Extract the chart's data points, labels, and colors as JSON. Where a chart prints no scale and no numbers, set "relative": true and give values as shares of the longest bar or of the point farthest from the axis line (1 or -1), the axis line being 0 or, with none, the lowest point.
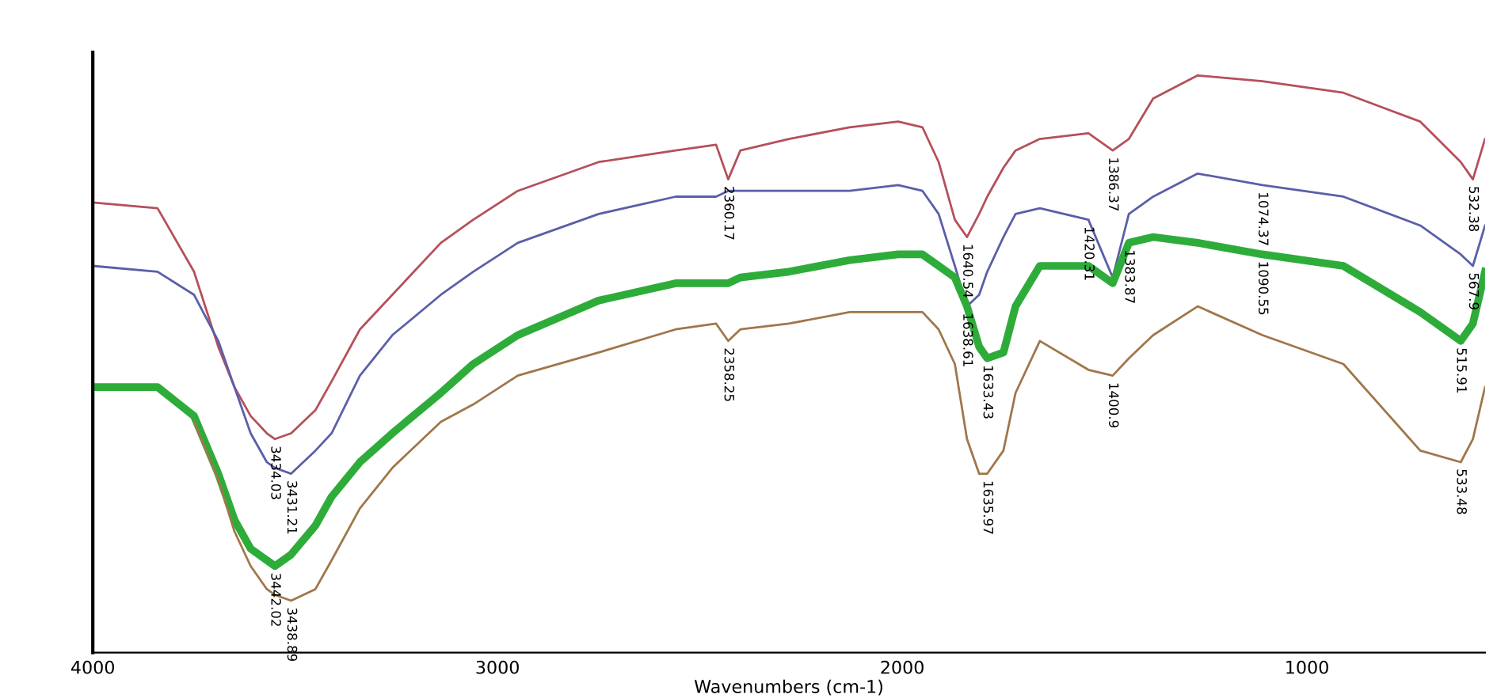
{
  "chart_data": {
    "type": "line",
    "relative": true,
    "xlabel": "Wavenumbers (cm-1)",
    "xlim": [
      4000,
      560
    ],
    "xticks": [
      4000,
      3000,
      2000,
      1000
    ],
    "tick_labels": "x",
    "grid": false,
    "marker": "none",
    "line_style": "solid",
    "x": [
      4000,
      3840,
      3750,
      3690,
      3650,
      3610,
      3570,
      3550,
      3510,
      3450,
      3410,
      3340,
      3260,
      3140,
      3060,
      2950,
      2750,
      2560,
      2460,
      2430,
      2400,
      2280,
      2130,
      2010,
      1950,
      1910,
      1870,
      1840,
      1810,
      1790,
      1750,
      1720,
      1660,
      1540,
      1480,
      1440,
      1380,
      1270,
      1110,
      910,
      720,
      620,
      590,
      560
    ],
    "series": [
      {
        "color": "#b5505a",
        "values": [
          0.78,
          0.77,
          0.66,
          0.53,
          0.46,
          0.41,
          0.38,
          0.37,
          0.38,
          0.42,
          0.47,
          0.56,
          0.62,
          0.71,
          0.75,
          0.8,
          0.85,
          0.87,
          0.88,
          0.82,
          0.87,
          0.89,
          0.91,
          0.92,
          0.91,
          0.85,
          0.75,
          0.72,
          0.76,
          0.79,
          0.84,
          0.87,
          0.89,
          0.9,
          0.87,
          0.89,
          0.96,
          1.0,
          0.99,
          0.97,
          0.92,
          0.85,
          0.82,
          0.89
        ]
      },
      {
        "color": "#5a5fa8",
        "values": [
          0.67,
          0.66,
          0.62,
          0.54,
          0.46,
          0.38,
          0.33,
          0.32,
          0.31,
          0.35,
          0.38,
          0.48,
          0.55,
          0.62,
          0.66,
          0.71,
          0.76,
          0.79,
          0.79,
          0.8,
          0.8,
          0.8,
          0.8,
          0.81,
          0.8,
          0.76,
          0.67,
          0.6,
          0.62,
          0.66,
          0.72,
          0.76,
          0.77,
          0.75,
          0.65,
          0.76,
          0.79,
          0.83,
          0.81,
          0.79,
          0.74,
          0.69,
          0.67,
          0.74
        ]
      },
      {
        "color": "#2eac3a",
        "values": [
          0.46,
          0.46,
          0.41,
          0.31,
          0.23,
          0.18,
          0.16,
          0.15,
          0.17,
          0.22,
          0.27,
          0.33,
          0.38,
          0.45,
          0.5,
          0.55,
          0.61,
          0.64,
          0.64,
          0.64,
          0.65,
          0.66,
          0.68,
          0.69,
          0.69,
          0.67,
          0.65,
          0.6,
          0.53,
          0.51,
          0.52,
          0.6,
          0.67,
          0.67,
          0.64,
          0.71,
          0.72,
          0.71,
          0.69,
          0.67,
          0.59,
          0.54,
          0.57,
          0.66
        ]
      },
      {
        "color": "#a0764a",
        "values": [
          null,
          null,
          0.4,
          0.3,
          0.21,
          0.15,
          0.11,
          0.1,
          0.09,
          0.11,
          0.16,
          0.25,
          0.32,
          0.4,
          0.43,
          0.48,
          0.52,
          0.56,
          0.57,
          0.54,
          0.56,
          0.57,
          0.59,
          0.59,
          0.59,
          0.56,
          0.5,
          0.37,
          0.31,
          0.31,
          0.35,
          0.45,
          0.54,
          0.49,
          0.48,
          0.51,
          0.55,
          0.6,
          0.55,
          0.5,
          0.35,
          0.33,
          0.37,
          0.46
        ]
      }
    ],
    "annotations": [
      {
        "text": "3434.03",
        "x": 3550,
        "y": 0.37
      },
      {
        "text": "3431.21",
        "x": 3510,
        "y": 0.31
      },
      {
        "text": "3442.02",
        "x": 3550,
        "y": 0.15
      },
      {
        "text": "3438.89",
        "x": 3510,
        "y": 0.09
      },
      {
        "text": "2360.17",
        "x": 2430,
        "y": 0.82
      },
      {
        "text": "2358.25",
        "x": 2430,
        "y": 0.54
      },
      {
        "text": "1640.54",
        "x": 1840,
        "y": 0.72
      },
      {
        "text": "1638.61",
        "x": 1840,
        "y": 0.6
      },
      {
        "text": "1633.43",
        "x": 1790,
        "y": 0.51
      },
      {
        "text": "1635.97",
        "x": 1790,
        "y": 0.31
      },
      {
        "text": "1386.37",
        "x": 1480,
        "y": 0.87
      },
      {
        "text": "1420.31",
        "x": 1540,
        "y": 0.75
      },
      {
        "text": "1383.87",
        "x": 1440,
        "y": 0.71
      },
      {
        "text": "1400.9",
        "x": 1480,
        "y": 0.48
      },
      {
        "text": "1074.37",
        "x": 1110,
        "y": 0.81
      },
      {
        "text": "1090.55",
        "x": 1110,
        "y": 0.69
      },
      {
        "text": "532.38",
        "x": 590,
        "y": 0.82
      },
      {
        "text": "567.9",
        "x": 590,
        "y": 0.67
      },
      {
        "text": "515.91",
        "x": 620,
        "y": 0.54
      },
      {
        "text": "533.48",
        "x": 620,
        "y": 0.33
      }
    ]
  }
}
